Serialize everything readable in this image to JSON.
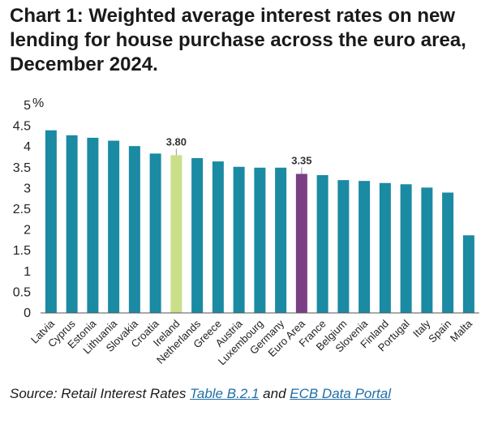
{
  "chart_data": {
    "type": "bar",
    "title": "Chart 1: Weighted average interest rates on new lending for house purchase across the euro area, December 2024.",
    "ylabel": "%",
    "ylim": [
      0,
      5
    ],
    "yticks": [
      "0",
      "0.5",
      "1",
      "1.5",
      "2",
      "2.5",
      "3",
      "3.5",
      "4",
      "4.5",
      "5"
    ],
    "grid": false,
    "categories": [
      "Latvia",
      "Cyprus",
      "Estonia",
      "Lithuania",
      "Slovakia",
      "Croatia",
      "Ireland",
      "Netherlands",
      "Greece",
      "Austria",
      "Luxembourg",
      "Germany",
      "Euro Area",
      "France",
      "Belgium",
      "Slovenia",
      "Finland",
      "Portugal",
      "Italy",
      "Spain",
      "Malta"
    ],
    "values": [
      4.4,
      4.28,
      4.22,
      4.15,
      4.02,
      3.84,
      3.8,
      3.73,
      3.65,
      3.52,
      3.5,
      3.5,
      3.35,
      3.32,
      3.2,
      3.18,
      3.13,
      3.1,
      3.02,
      2.9,
      1.87
    ],
    "data_labels": [
      {
        "category": "Ireland",
        "text": "3.80"
      },
      {
        "category": "Euro Area",
        "text": "3.35"
      }
    ],
    "colors": {
      "default": "#1b8aa3",
      "highlight": "#c9df8a",
      "euro_area": "#7b3f86"
    },
    "highlight_category": "Ireland",
    "average_category": "Euro Area"
  },
  "source": {
    "prefix": "Source: Retail Interest Rates ",
    "link1": "Table B.2.1",
    "middle": " and ",
    "link2": "ECB Data Portal"
  }
}
